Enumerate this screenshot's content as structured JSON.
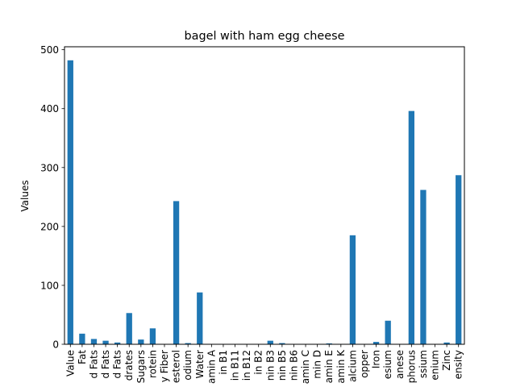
{
  "chart_data": {
    "type": "bar",
    "title": "bagel with ham egg cheese",
    "xlabel": "",
    "ylabel": "Values",
    "ylim": [
      0,
      505
    ],
    "yticks": [
      0,
      100,
      200,
      300,
      400,
      500
    ],
    "categories": [
      "Value",
      "Fat",
      "d Fats",
      "d Fats",
      "d Fats",
      "drates",
      "Sugars",
      "rotein",
      "y Fiber",
      "esterol",
      "odium",
      "Water",
      "amin A",
      "in B1",
      "in B11",
      "in B12",
      "in B2",
      "nin B3",
      "nin B5",
      "nin B6",
      "amin C",
      "min D",
      "amin E",
      "amin K",
      "alcium",
      "opper",
      "Iron",
      "esium",
      "anese",
      "phorus",
      "ssium",
      "enium",
      "Zinc",
      "ensity"
    ],
    "values": [
      482,
      18,
      9,
      6,
      3,
      53,
      8,
      27,
      0.5,
      243,
      2,
      88,
      0.2,
      0.2,
      0.1,
      0.1,
      0.3,
      6,
      2,
      0.3,
      0,
      0.2,
      1.5,
      0.1,
      185,
      0.2,
      4,
      40,
      0.3,
      396,
      262,
      0.3,
      3,
      287
    ],
    "bar_color": "#1f77b4",
    "grid": false,
    "legend": "none"
  }
}
